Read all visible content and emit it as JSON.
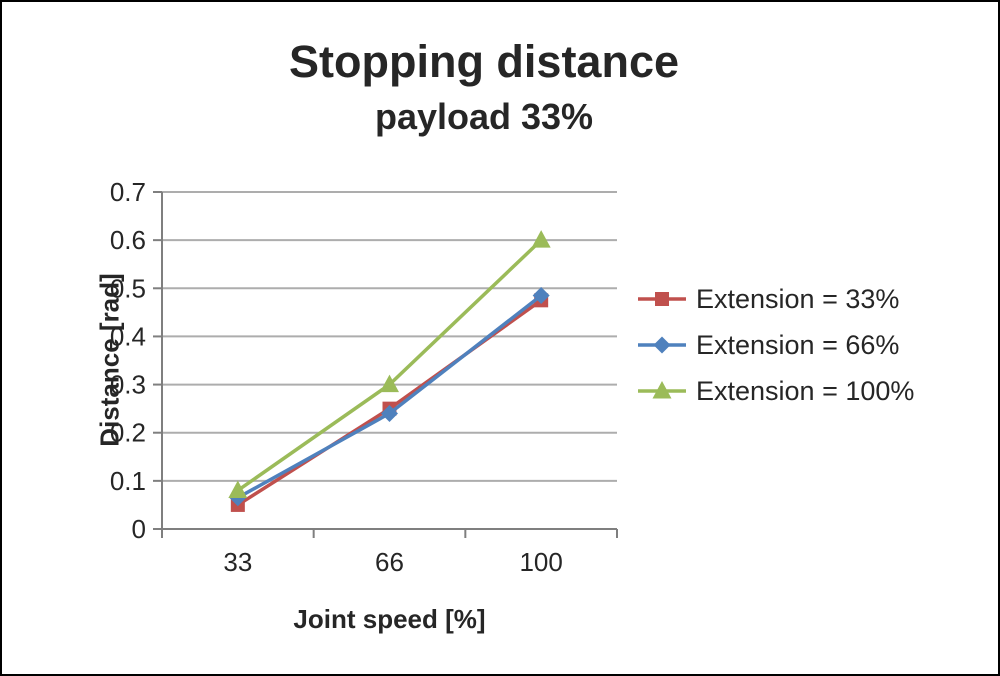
{
  "chart_data": {
    "type": "line",
    "title": "Stopping distance",
    "subtitle": "payload 33%",
    "xlabel": "Joint speed [%]",
    "ylabel": "Distance [rad]",
    "categories": [
      "33",
      "66",
      "100"
    ],
    "series": [
      {
        "name": "Extension = 33%",
        "marker": "square",
        "color": "#C0504D",
        "values": [
          0.05,
          0.25,
          0.475
        ]
      },
      {
        "name": "Extension = 66%",
        "marker": "diamond",
        "color": "#4F81BD",
        "values": [
          0.065,
          0.24,
          0.485
        ]
      },
      {
        "name": "Extension = 100%",
        "marker": "triangle",
        "color": "#9BBB59",
        "values": [
          0.08,
          0.3,
          0.6
        ]
      }
    ],
    "ylim": [
      0,
      0.7
    ],
    "ytick_step": 0.1,
    "grid": true,
    "legend_position": "right",
    "colors": {
      "axis": "#7F7F7F",
      "grid": "#ADADAD",
      "text": "#262626"
    }
  }
}
